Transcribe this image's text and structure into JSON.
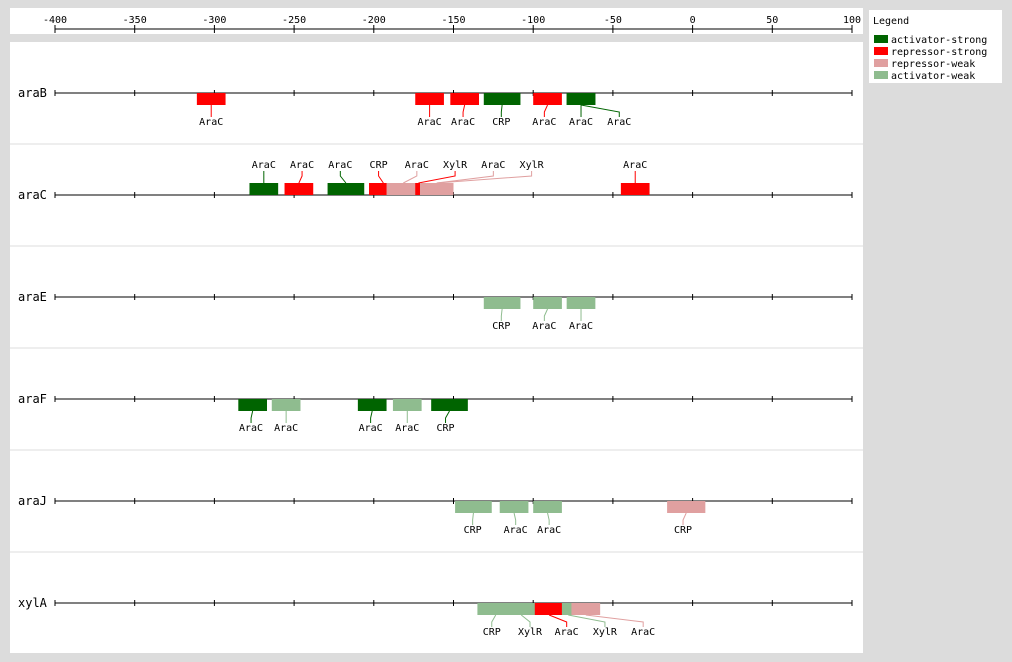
{
  "axis": {
    "ticks": [
      -400,
      -350,
      -300,
      -250,
      -200,
      -150,
      -100,
      -50,
      0,
      50,
      100
    ],
    "min": -400,
    "max": 100
  },
  "legend": {
    "title": "Legend",
    "items": [
      {
        "key": "activator-strong",
        "label": "activator-strong",
        "color": "#006400"
      },
      {
        "key": "repressor-strong",
        "label": "repressor-strong",
        "color": "#ff0000"
      },
      {
        "key": "repressor-weak",
        "label": "repressor-weak",
        "color": "#e0a0a0"
      },
      {
        "key": "activator-weak",
        "label": "activator-weak",
        "color": "#8fbc8f"
      }
    ]
  },
  "genes": [
    {
      "name": "araB",
      "label_side": "below",
      "sites": [
        {
          "tf": "AraC",
          "type": "repressor-strong",
          "start": -311,
          "end": -293,
          "label_pos": -302
        },
        {
          "tf": "AraC",
          "type": "repressor-strong",
          "start": -174,
          "end": -156,
          "label_pos": -165
        },
        {
          "tf": "AraC",
          "type": "repressor-strong",
          "start": -152,
          "end": -134,
          "label_pos": -144
        },
        {
          "tf": "CRP",
          "type": "activator-strong",
          "start": -131,
          "end": -108,
          "label_pos": -120
        },
        {
          "tf": "AraC",
          "type": "repressor-strong",
          "start": -100,
          "end": -82,
          "label_pos": -93
        },
        {
          "tf": "AraC",
          "type": "activator-strong",
          "start": -79,
          "end": -61,
          "label_pos": -70
        },
        {
          "tf": "AraC",
          "type": "activator-strong",
          "start": -79,
          "end": -61,
          "label_pos": -46
        }
      ]
    },
    {
      "name": "araC",
      "label_side": "above",
      "sites": [
        {
          "tf": "AraC",
          "type": "activator-strong",
          "start": -278,
          "end": -260,
          "label_pos": -269
        },
        {
          "tf": "AraC",
          "type": "repressor-strong",
          "start": -256,
          "end": -238,
          "label_pos": -245
        },
        {
          "tf": "AraC",
          "type": "activator-strong",
          "start": -229,
          "end": -206,
          "label_pos": -221
        },
        {
          "tf": "CRP",
          "type": "repressor-strong",
          "start": -203,
          "end": -185,
          "label_pos": -197
        },
        {
          "tf": "AraC",
          "type": "repressor-weak",
          "start": -192,
          "end": -171,
          "label_pos": -173
        },
        {
          "tf": "XylR",
          "type": "repressor-strong",
          "start": -174,
          "end": -170,
          "label_pos": -149
        },
        {
          "tf": "AraC",
          "type": "repressor-weak",
          "start": -171,
          "end": -150,
          "label_pos": -125
        },
        {
          "tf": "XylR",
          "type": "repressor-weak",
          "start": -171,
          "end": -150,
          "label_pos": -101
        },
        {
          "tf": "AraC",
          "type": "repressor-strong",
          "start": -45,
          "end": -27,
          "label_pos": -36
        }
      ]
    },
    {
      "name": "araE",
      "label_side": "below",
      "sites": [
        {
          "tf": "CRP",
          "type": "activator-weak",
          "start": -131,
          "end": -108,
          "label_pos": -120
        },
        {
          "tf": "AraC",
          "type": "activator-weak",
          "start": -100,
          "end": -82,
          "label_pos": -93
        },
        {
          "tf": "AraC",
          "type": "activator-weak",
          "start": -79,
          "end": -61,
          "label_pos": -70
        }
      ]
    },
    {
      "name": "araF",
      "label_side": "below",
      "sites": [
        {
          "tf": "AraC",
          "type": "activator-strong",
          "start": -285,
          "end": -267,
          "label_pos": -277
        },
        {
          "tf": "AraC",
          "type": "activator-weak",
          "start": -264,
          "end": -246,
          "label_pos": -255
        },
        {
          "tf": "AraC",
          "type": "activator-strong",
          "start": -210,
          "end": -192,
          "label_pos": -202
        },
        {
          "tf": "AraC",
          "type": "activator-weak",
          "start": -188,
          "end": -170,
          "label_pos": -179
        },
        {
          "tf": "CRP",
          "type": "activator-strong",
          "start": -164,
          "end": -141,
          "label_pos": -155
        }
      ]
    },
    {
      "name": "araJ",
      "label_side": "below",
      "sites": [
        {
          "tf": "CRP",
          "type": "activator-weak",
          "start": -149,
          "end": -126,
          "label_pos": -138
        },
        {
          "tf": "AraC",
          "type": "activator-weak",
          "start": -121,
          "end": -103,
          "label_pos": -111
        },
        {
          "tf": "AraC",
          "type": "activator-weak",
          "start": -100,
          "end": -82,
          "label_pos": -90
        },
        {
          "tf": "CRP",
          "type": "repressor-weak",
          "start": -16,
          "end": 8,
          "label_pos": -6
        }
      ]
    },
    {
      "name": "xylA",
      "label_side": "below",
      "sites": [
        {
          "tf": "CRP",
          "type": "activator-weak",
          "start": -135,
          "end": -112,
          "label_pos": -126
        },
        {
          "tf": "XylR",
          "type": "activator-weak",
          "start": -117,
          "end": -98,
          "label_pos": -102
        },
        {
          "tf": "AraC",
          "type": "repressor-strong",
          "start": -99,
          "end": -81,
          "label_pos": -79
        },
        {
          "tf": "XylR",
          "type": "activator-weak",
          "start": -82,
          "end": -74,
          "label_pos": -55
        },
        {
          "tf": "AraC",
          "type": "repressor-weak",
          "start": -76,
          "end": -58,
          "label_pos": -31
        }
      ]
    }
  ]
}
